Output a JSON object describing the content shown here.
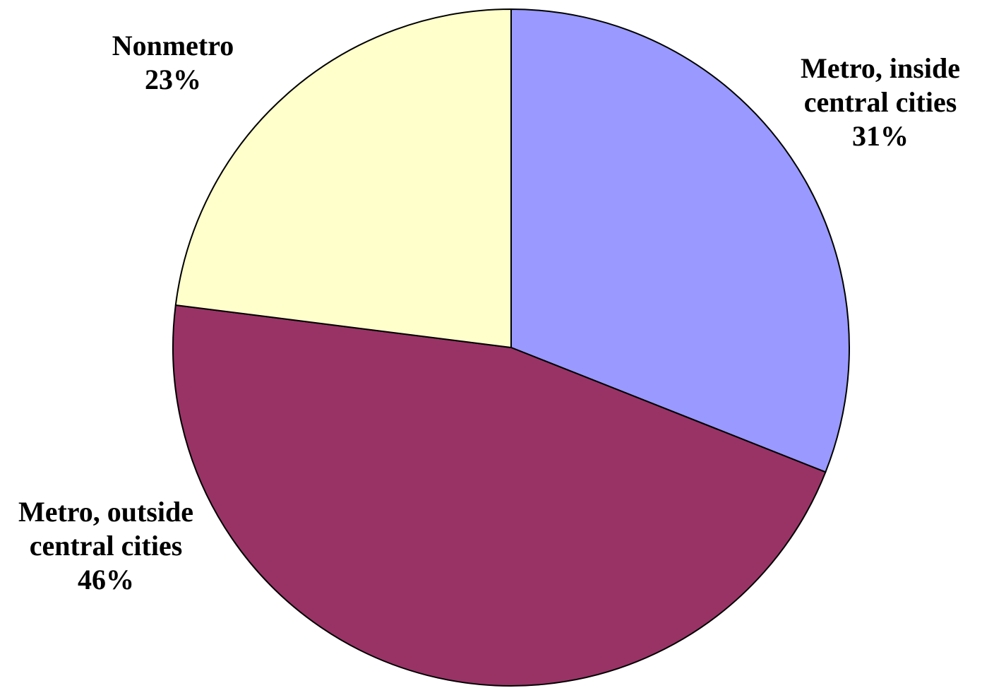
{
  "chart_data": {
    "type": "pie",
    "start_angle_deg": 0,
    "direction": "clockwise",
    "slices": [
      {
        "label": "Metro, inside central cities",
        "label_lines": [
          "Metro, inside",
          "central cities"
        ],
        "value_label": "31%",
        "value": 31,
        "color": "#9999ff"
      },
      {
        "label": "Metro, outside central cities",
        "label_lines": [
          "Metro, outside",
          "central cities"
        ],
        "value_label": "46%",
        "value": 46,
        "color": "#993366"
      },
      {
        "label": "Nonmetro",
        "label_lines": [
          "Nonmetro"
        ],
        "value_label": "23%",
        "value": 23,
        "color": "#ffffcc"
      }
    ]
  }
}
